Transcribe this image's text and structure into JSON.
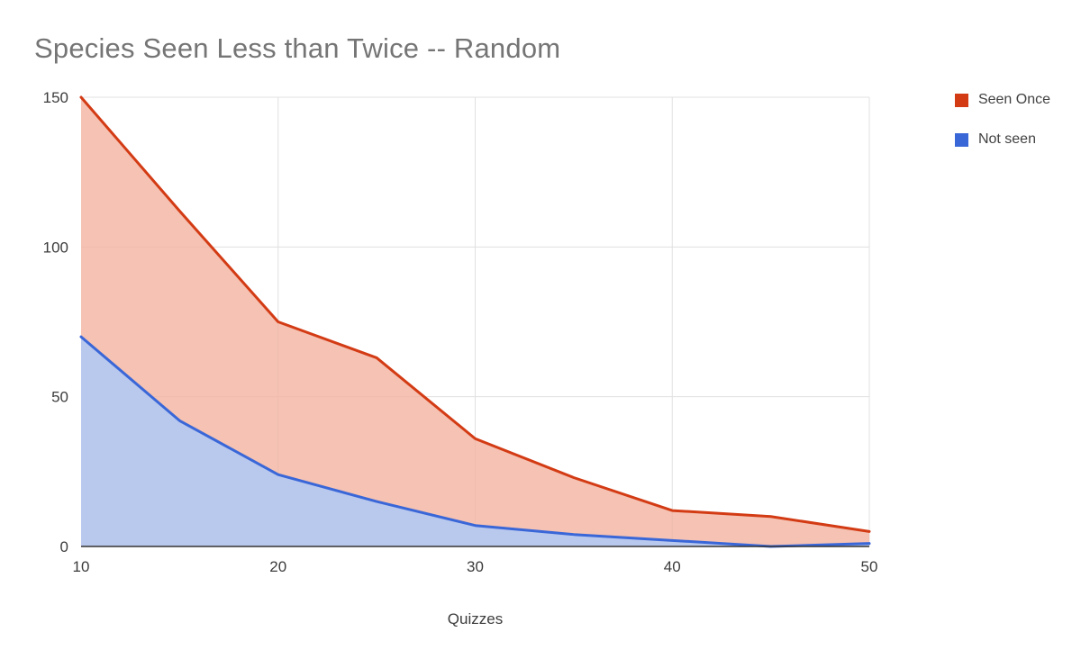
{
  "chart_data": {
    "type": "area",
    "title": "Species Seen Less than Twice -- Random",
    "xlabel": "Quizzes",
    "ylabel": "",
    "x": [
      10,
      15,
      20,
      25,
      30,
      35,
      40,
      45,
      50
    ],
    "series": [
      {
        "name": "Seen Once",
        "color": "#d33b14",
        "fill": "#f2b3a0",
        "values": [
          150,
          112,
          75,
          63,
          36,
          23,
          12,
          10,
          5
        ]
      },
      {
        "name": "Not seen",
        "color": "#3a67d8",
        "fill": "#b5c8f0",
        "values": [
          70,
          42,
          24,
          15,
          7,
          4,
          2,
          0,
          1
        ]
      }
    ],
    "xlim": [
      10,
      50
    ],
    "ylim": [
      0,
      150
    ],
    "xticks": [
      10,
      20,
      30,
      40,
      50
    ],
    "yticks": [
      0,
      50,
      100,
      150
    ],
    "grid": true,
    "legend_position": "right-top",
    "colors": {
      "gridline": "#e0e0e0",
      "axis_line": "#333333",
      "tick_text": "#3c3c3c",
      "title_text": "#757575",
      "legend_text": "#424242",
      "background": "#ffffff"
    }
  }
}
